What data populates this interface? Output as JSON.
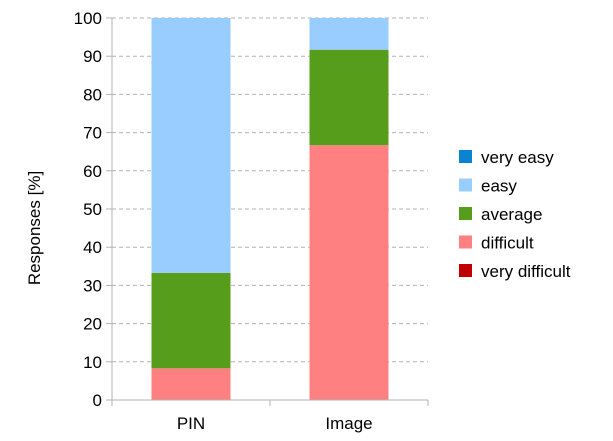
{
  "chart_data": {
    "type": "bar",
    "stacked": true,
    "title": "",
    "xlabel": "",
    "ylabel": "Responses [%]",
    "ylim": [
      0,
      100
    ],
    "yticks": [
      0,
      10,
      20,
      30,
      40,
      50,
      60,
      70,
      80,
      90,
      100
    ],
    "categories": [
      "PIN",
      "Image"
    ],
    "grid": "horizontal dashed",
    "legend_position": "right",
    "series": [
      {
        "name": "very easy",
        "color": "#0a84d0",
        "values": [
          0,
          0
        ]
      },
      {
        "name": "easy",
        "color": "#99ccff",
        "values": [
          66.7,
          8.3
        ]
      },
      {
        "name": "average",
        "color": "#579d1c",
        "values": [
          25,
          25
        ]
      },
      {
        "name": "difficult",
        "color": "#ff8080",
        "values": [
          8.3,
          66.7
        ]
      },
      {
        "name": "very difficult",
        "color": "#c00000",
        "values": [
          0,
          0
        ]
      }
    ]
  }
}
